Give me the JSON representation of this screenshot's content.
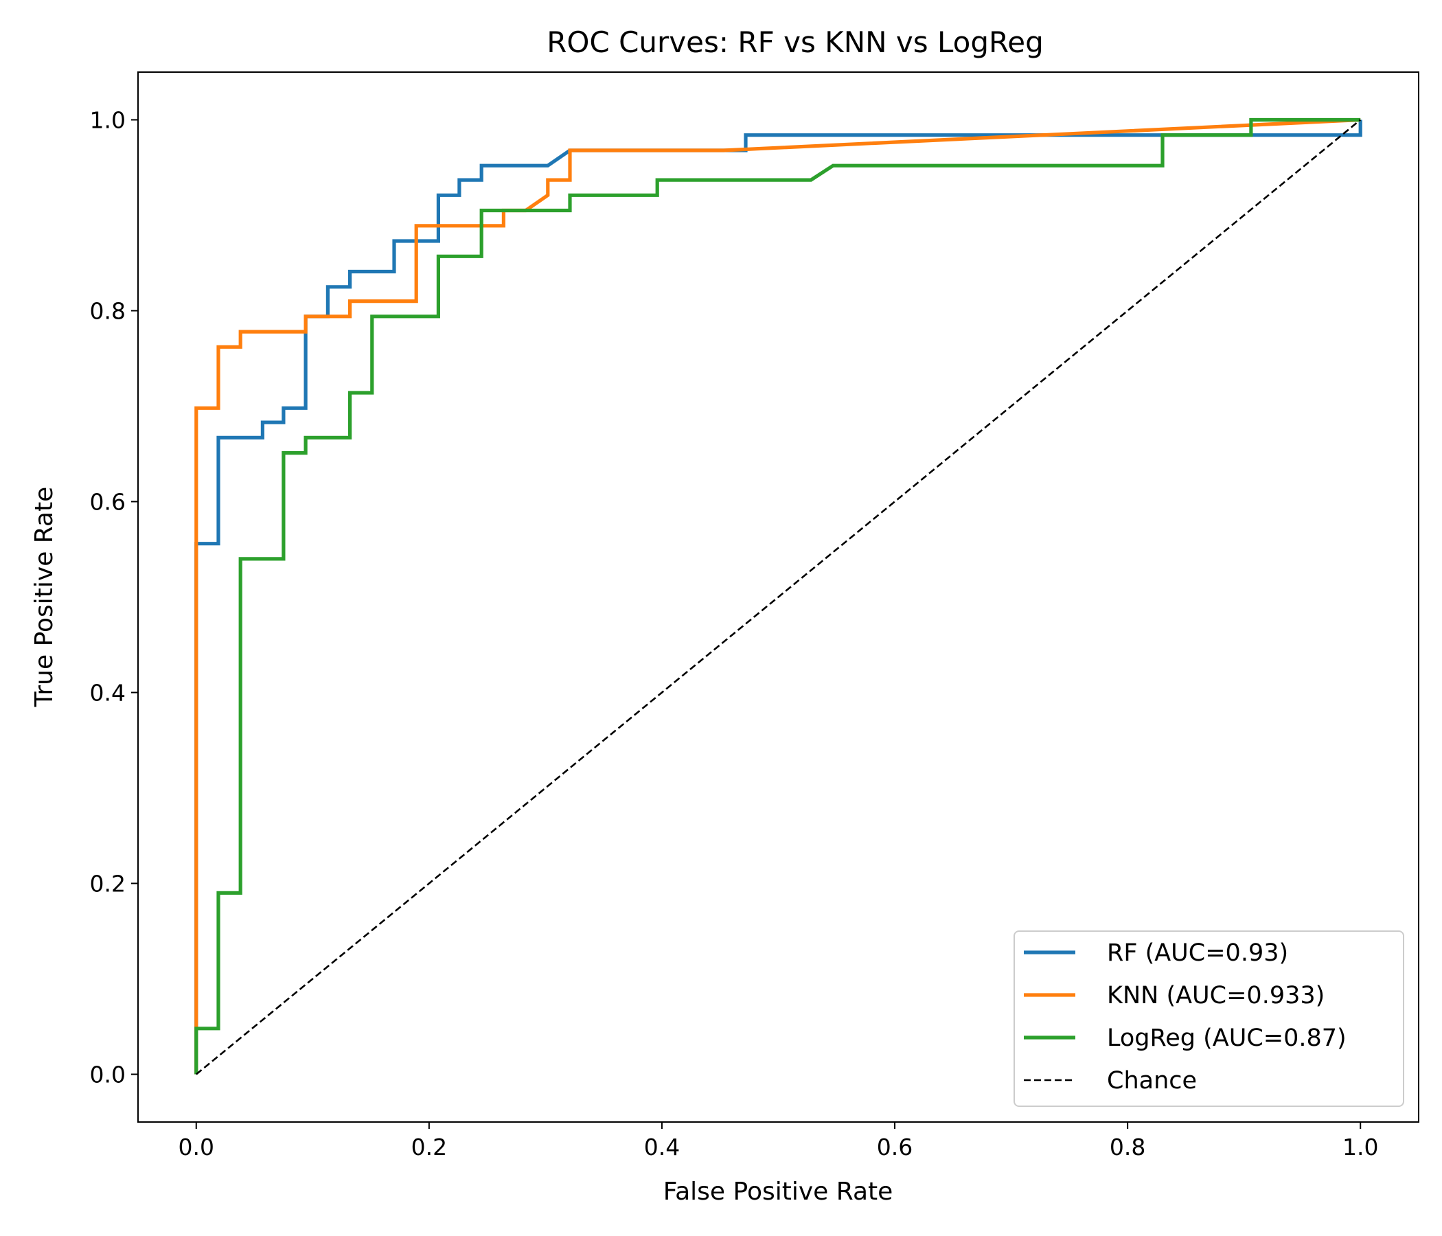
{
  "chart_data": {
    "type": "line",
    "title": "ROC Curves: RF vs KNN vs LogReg",
    "xlabel": "False Positive Rate",
    "ylabel": "True Positive Rate",
    "xlim": [
      -0.05,
      1.05
    ],
    "ylim": [
      -0.05,
      1.05
    ],
    "x_ticks": [
      0.0,
      0.2,
      0.4,
      0.6,
      0.8,
      1.0
    ],
    "y_ticks": [
      0.0,
      0.2,
      0.4,
      0.6,
      0.8,
      1.0
    ],
    "x_tick_labels": [
      "0.0",
      "0.2",
      "0.4",
      "0.6",
      "0.8",
      "1.0"
    ],
    "y_tick_labels": [
      "0.0",
      "0.2",
      "0.4",
      "0.6",
      "0.8",
      "1.0"
    ],
    "grid": false,
    "legend_position": "lower-right",
    "series": [
      {
        "name": "RF (AUC=0.93)",
        "color": "#1f77b4",
        "style": "solid",
        "points": [
          [
            0.0,
            0.0
          ],
          [
            0.0,
            0.556
          ],
          [
            0.019,
            0.556
          ],
          [
            0.019,
            0.667
          ],
          [
            0.057,
            0.667
          ],
          [
            0.057,
            0.683
          ],
          [
            0.075,
            0.683
          ],
          [
            0.075,
            0.698
          ],
          [
            0.094,
            0.698
          ],
          [
            0.094,
            0.794
          ],
          [
            0.113,
            0.794
          ],
          [
            0.113,
            0.825
          ],
          [
            0.132,
            0.825
          ],
          [
            0.132,
            0.841
          ],
          [
            0.17,
            0.841
          ],
          [
            0.17,
            0.873
          ],
          [
            0.189,
            0.873
          ],
          [
            0.208,
            0.873
          ],
          [
            0.208,
            0.921
          ],
          [
            0.226,
            0.921
          ],
          [
            0.226,
            0.937
          ],
          [
            0.245,
            0.937
          ],
          [
            0.245,
            0.952
          ],
          [
            0.302,
            0.952
          ],
          [
            0.321,
            0.968
          ],
          [
            0.472,
            0.968
          ],
          [
            0.472,
            0.984
          ],
          [
            1.0,
            0.984
          ],
          [
            1.0,
            1.0
          ]
        ]
      },
      {
        "name": "KNN (AUC=0.933)",
        "color": "#ff7f0e",
        "style": "solid",
        "points": [
          [
            0.0,
            0.0
          ],
          [
            0.0,
            0.698
          ],
          [
            0.019,
            0.698
          ],
          [
            0.019,
            0.762
          ],
          [
            0.038,
            0.762
          ],
          [
            0.038,
            0.778
          ],
          [
            0.094,
            0.778
          ],
          [
            0.094,
            0.794
          ],
          [
            0.132,
            0.794
          ],
          [
            0.132,
            0.81
          ],
          [
            0.189,
            0.81
          ],
          [
            0.189,
            0.889
          ],
          [
            0.264,
            0.889
          ],
          [
            0.264,
            0.905
          ],
          [
            0.283,
            0.905
          ],
          [
            0.302,
            0.921
          ],
          [
            0.302,
            0.937
          ],
          [
            0.321,
            0.937
          ],
          [
            0.321,
            0.968
          ],
          [
            0.453,
            0.968
          ],
          [
            1.0,
            1.0
          ]
        ]
      },
      {
        "name": "LogReg (AUC=0.87)",
        "color": "#2ca02c",
        "style": "solid",
        "points": [
          [
            0.0,
            0.0
          ],
          [
            0.0,
            0.048
          ],
          [
            0.019,
            0.048
          ],
          [
            0.019,
            0.19
          ],
          [
            0.038,
            0.19
          ],
          [
            0.038,
            0.54
          ],
          [
            0.075,
            0.54
          ],
          [
            0.075,
            0.651
          ],
          [
            0.094,
            0.651
          ],
          [
            0.094,
            0.667
          ],
          [
            0.132,
            0.667
          ],
          [
            0.132,
            0.714
          ],
          [
            0.151,
            0.714
          ],
          [
            0.151,
            0.794
          ],
          [
            0.208,
            0.794
          ],
          [
            0.208,
            0.857
          ],
          [
            0.245,
            0.857
          ],
          [
            0.245,
            0.905
          ],
          [
            0.321,
            0.905
          ],
          [
            0.321,
            0.921
          ],
          [
            0.396,
            0.921
          ],
          [
            0.396,
            0.937
          ],
          [
            0.528,
            0.937
          ],
          [
            0.547,
            0.952
          ],
          [
            0.83,
            0.952
          ],
          [
            0.83,
            0.984
          ],
          [
            0.906,
            0.984
          ],
          [
            0.906,
            1.0
          ],
          [
            1.0,
            1.0
          ]
        ]
      },
      {
        "name": "Chance",
        "color": "#000000",
        "style": "dashed",
        "points": [
          [
            0.0,
            0.0
          ],
          [
            1.0,
            1.0
          ]
        ]
      }
    ]
  }
}
